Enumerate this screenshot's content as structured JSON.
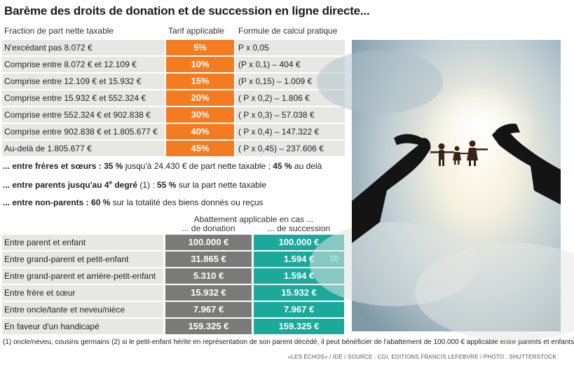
{
  "title": "Barème des droits de donation et de succession en ligne directe...",
  "bareme": {
    "headers": [
      "Fraction de part nette taxable",
      "Tarif applicable",
      "Formule de calcul pratique"
    ],
    "rows": [
      {
        "fraction": "N'excédant pas 8.072 €",
        "rate": "5%",
        "formula": "P x 0,05"
      },
      {
        "fraction": "Comprise entre 8.072 € et 12.109 €",
        "rate": "10%",
        "formula": "(P x 0,1) – 404 €"
      },
      {
        "fraction": "Comprise entre 12.109 € et 15.932 €",
        "rate": "15%",
        "formula": "(P x 0,15) – 1.009 €"
      },
      {
        "fraction": "Comprise entre 15.932 € et 552.324 €",
        "rate": "20%",
        "formula": "( P x 0,2) – 1.806 €"
      },
      {
        "fraction": "Comprise entre 552.324 € et 902.838 €",
        "rate": "30%",
        "formula": "( P x 0,3) – 57.038 €"
      },
      {
        "fraction": "Comprise entre 902.838 € et 1.805.677 €",
        "rate": "40%",
        "formula": "( P x 0,4) – 147.322 €"
      },
      {
        "fraction": "Au-delà de 1.805.677 €",
        "rate": "45%",
        "formula": "( P x 0,45) – 237.606 €"
      }
    ]
  },
  "notes": {
    "freres": {
      "lead": "... entre frères et sœurs :",
      "rate1": "35 %",
      "mid": " jusqu'à 24.430 € de part nette taxable ;",
      "rate2": "45 %",
      "tail": " au delà"
    },
    "parents": {
      "lead": "... entre parents jusqu'au 4",
      "sup": "e",
      "lead2": " degré",
      "ref": " (1) : ",
      "rate": "55 %",
      "tail": " sur la part nette taxable"
    },
    "nonparents": {
      "lead": "... entre non-parents :",
      "rate": "60 %",
      "tail": " sur la totalité des biens donnés ou reçus"
    }
  },
  "abattement": {
    "header_main": "Abattement applicable en cas ...",
    "header_don": "... de donation",
    "header_suc": "... de succession",
    "rows": [
      {
        "label": "Entre parent et enfant",
        "donation": "100.000 €",
        "succession": "100.000 €",
        "ref": ""
      },
      {
        "label": "Entre grand-parent et petit-enfant",
        "donation": "31.865 €",
        "succession": "1.594 €",
        "ref": "(2)"
      },
      {
        "label": "Entre grand-parent et arrière-petit-enfant",
        "donation": "5.310 €",
        "succession": "1.594 €",
        "ref": ""
      },
      {
        "label": "Entre frère et sœur",
        "donation": "15.932 €",
        "succession": "15.932 €",
        "ref": ""
      },
      {
        "label": "Entre oncle/tante et neveu/nièce",
        "donation": "7.967 €",
        "succession": "7.967 €",
        "ref": ""
      },
      {
        "label": "En faveur d'un handicapé",
        "donation": "159.325 €",
        "succession": "159.325 €",
        "ref": ""
      }
    ]
  },
  "footnote": "(1) oncle/neveu, cousins germains (2) si le petit-enfant hérite en représentation de son parent décédé, il peut bénéficier de l'abattement de 100.000 € applicable entre parents et enfants",
  "source": "«LES ÉCHOS» / IDÉ / SOURCE : CGI, EDITIONS FRANCIS LEFEBVRE / PHOTO : SHUTTERSTOCK",
  "colors": {
    "orange": "#f47b20",
    "gray": "#7a7a78",
    "teal": "#1aa99b",
    "cell_bg": "#e7e7e4"
  },
  "photo_icon": "hands-holding-paper-family-photo"
}
